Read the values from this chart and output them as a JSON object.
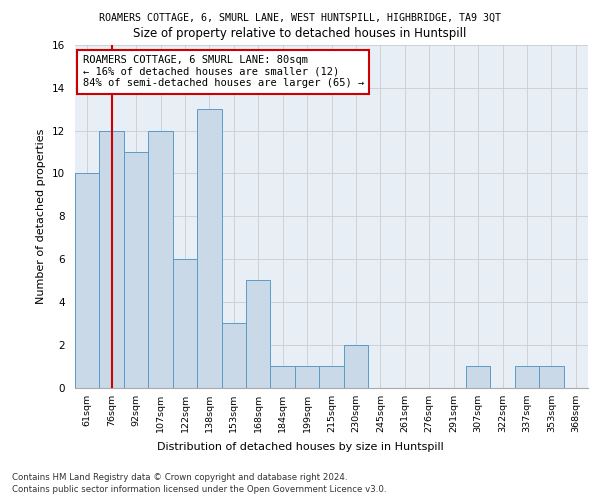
{
  "suptitle": "ROAMERS COTTAGE, 6, SMURL LANE, WEST HUNTSPILL, HIGHBRIDGE, TA9 3QT",
  "title": "Size of property relative to detached houses in Huntspill",
  "xlabel": "Distribution of detached houses by size in Huntspill",
  "ylabel": "Number of detached properties",
  "categories": [
    "61sqm",
    "76sqm",
    "92sqm",
    "107sqm",
    "122sqm",
    "138sqm",
    "153sqm",
    "168sqm",
    "184sqm",
    "199sqm",
    "215sqm",
    "230sqm",
    "245sqm",
    "261sqm",
    "276sqm",
    "291sqm",
    "307sqm",
    "322sqm",
    "337sqm",
    "353sqm",
    "368sqm"
  ],
  "values": [
    10,
    12,
    11,
    12,
    6,
    13,
    3,
    5,
    1,
    1,
    1,
    2,
    0,
    0,
    0,
    0,
    1,
    0,
    1,
    1,
    0
  ],
  "bar_color": "#c9d9e8",
  "bar_edge_color": "#5b9ac8",
  "vline_index": 1,
  "vline_color": "#cc0000",
  "annotation_text": "ROAMERS COTTAGE, 6 SMURL LANE: 80sqm\n← 16% of detached houses are smaller (12)\n84% of semi-detached houses are larger (65) →",
  "annotation_fontsize": 7.5,
  "annotation_box_color": "#ffffff",
  "annotation_box_edge": "#cc0000",
  "footer1": "Contains HM Land Registry data © Crown copyright and database right 2024.",
  "footer2": "Contains public sector information licensed under the Open Government Licence v3.0.",
  "ylim": [
    0,
    16
  ],
  "yticks": [
    0,
    2,
    4,
    6,
    8,
    10,
    12,
    14,
    16
  ],
  "grid_color": "#cccccc",
  "bg_color": "#e8eef5"
}
